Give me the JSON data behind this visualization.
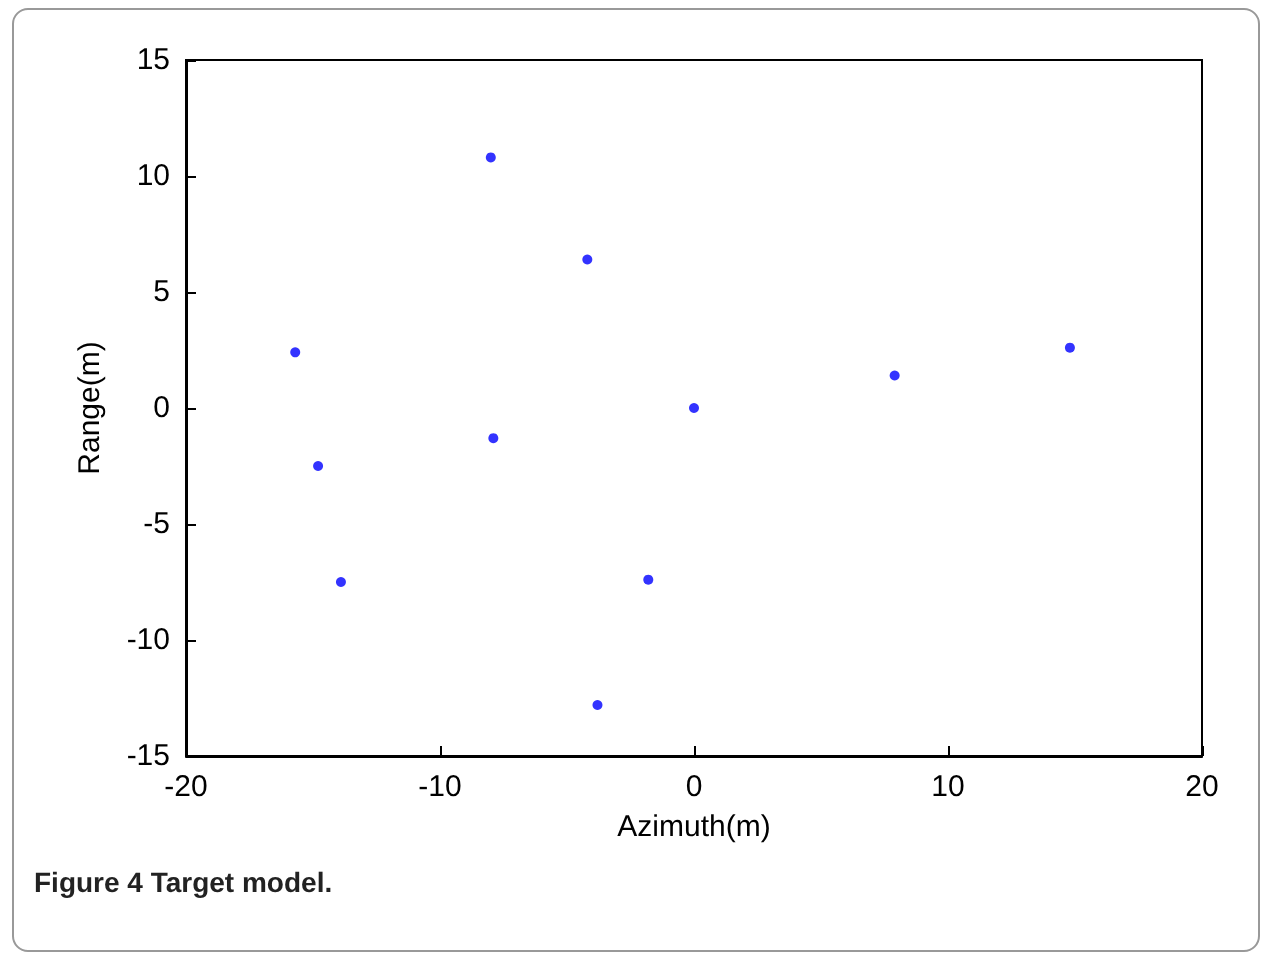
{
  "chart_data": {
    "type": "scatter",
    "xlabel": "Azimuth(m)",
    "ylabel": "Range(m)",
    "x": [
      -8.0,
      -4.2,
      -15.7,
      7.9,
      14.8,
      0,
      -7.9,
      -14.8,
      -13.9,
      -1.8,
      -3.8
    ],
    "values": [
      10.8,
      6.4,
      2.4,
      1.4,
      2.6,
      0,
      -1.3,
      -2.5,
      -7.5,
      -7.4,
      -12.8
    ],
    "color": "#0000ff",
    "marker": "circle",
    "xlim": [
      -20,
      20
    ],
    "xticks": [
      -20,
      -10,
      0,
      10,
      20
    ],
    "ylim": [
      -15,
      15
    ],
    "yticks": [
      -15,
      -10,
      -5,
      0,
      5,
      10,
      15
    ],
    "annotations": [
      "Figure 4 Target model."
    ]
  }
}
